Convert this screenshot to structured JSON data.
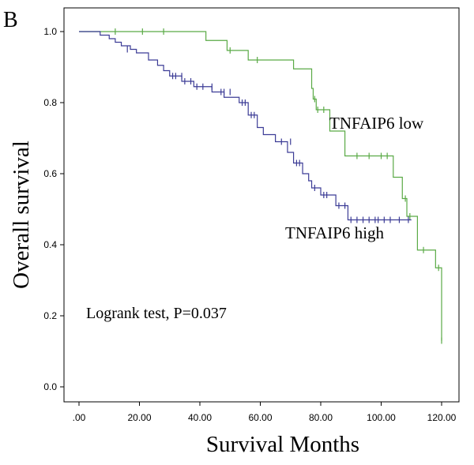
{
  "panel_label": "B",
  "chart_data": {
    "type": "line",
    "subtype": "kaplan-meier",
    "title": "",
    "xlabel": "Survival Months",
    "ylabel": "Overall survival",
    "xlim": [
      0,
      120
    ],
    "ylim": [
      0,
      1.0
    ],
    "x_ticks": [
      0,
      20,
      40,
      60,
      80,
      100,
      120
    ],
    "x_tick_labels": [
      ".00",
      "20.00",
      "40.00",
      "60.00",
      "80.00",
      "100.00",
      "120.00"
    ],
    "y_ticks": [
      0,
      0.2,
      0.4,
      0.6,
      0.8,
      1.0
    ],
    "y_tick_labels": [
      "0.0",
      "0.2",
      "0.4",
      "0.6",
      "0.8",
      "1.0"
    ],
    "grid": false,
    "annotation": "Logrank test, P=0.037",
    "series": [
      {
        "name": "TNFAIP6 low",
        "color": "#5aaa46",
        "steps": [
          [
            0,
            1.0
          ],
          [
            42,
            0.975
          ],
          [
            49,
            0.947
          ],
          [
            56,
            0.92
          ],
          [
            71,
            0.895
          ],
          [
            77,
            0.84
          ],
          [
            77.5,
            0.81
          ],
          [
            78.5,
            0.78
          ],
          [
            83,
            0.72
          ],
          [
            88,
            0.65
          ],
          [
            104,
            0.59
          ],
          [
            107,
            0.53
          ],
          [
            108.5,
            0.48
          ],
          [
            112,
            0.385
          ],
          [
            118,
            0.335
          ],
          [
            120,
            0.13
          ]
        ],
        "censored": [
          [
            12,
            1.0
          ],
          [
            21,
            1.0
          ],
          [
            28,
            1.0
          ],
          [
            50,
            0.947
          ],
          [
            59,
            0.92
          ],
          [
            78,
            0.81
          ],
          [
            79,
            0.78
          ],
          [
            81,
            0.78
          ],
          [
            92,
            0.65
          ],
          [
            96,
            0.65
          ],
          [
            100,
            0.65
          ],
          [
            102,
            0.65
          ],
          [
            108,
            0.53
          ],
          [
            109.5,
            0.48
          ],
          [
            114,
            0.385
          ],
          [
            119,
            0.335
          ],
          [
            120,
            0.13
          ]
        ]
      },
      {
        "name": "TNFAIP6 high",
        "color": "#3c3c96",
        "steps": [
          [
            0,
            1.0
          ],
          [
            7,
            0.99
          ],
          [
            10,
            0.98
          ],
          [
            12,
            0.97
          ],
          [
            14,
            0.96
          ],
          [
            17,
            0.95
          ],
          [
            19,
            0.94
          ],
          [
            23,
            0.92
          ],
          [
            26,
            0.905
          ],
          [
            28,
            0.89
          ],
          [
            30,
            0.875
          ],
          [
            34,
            0.86
          ],
          [
            38,
            0.845
          ],
          [
            44,
            0.83
          ],
          [
            48,
            0.815
          ],
          [
            53,
            0.8
          ],
          [
            56,
            0.765
          ],
          [
            59,
            0.73
          ],
          [
            61,
            0.71
          ],
          [
            65,
            0.69
          ],
          [
            69,
            0.66
          ],
          [
            71,
            0.63
          ],
          [
            74,
            0.6
          ],
          [
            76,
            0.58
          ],
          [
            77,
            0.56
          ],
          [
            80,
            0.54
          ],
          [
            85,
            0.51
          ],
          [
            89,
            0.47
          ],
          [
            110,
            0.47
          ]
        ],
        "censored": [
          [
            16,
            0.95
          ],
          [
            31,
            0.875
          ],
          [
            32,
            0.875
          ],
          [
            34,
            0.875
          ],
          [
            35,
            0.86
          ],
          [
            37,
            0.86
          ],
          [
            39,
            0.845
          ],
          [
            41,
            0.845
          ],
          [
            44,
            0.845
          ],
          [
            47,
            0.83
          ],
          [
            48,
            0.83
          ],
          [
            50,
            0.83
          ],
          [
            54,
            0.8
          ],
          [
            55,
            0.8
          ],
          [
            57,
            0.765
          ],
          [
            58,
            0.765
          ],
          [
            67,
            0.69
          ],
          [
            70,
            0.69
          ],
          [
            72,
            0.63
          ],
          [
            73,
            0.63
          ],
          [
            78,
            0.56
          ],
          [
            81,
            0.54
          ],
          [
            82,
            0.54
          ],
          [
            86,
            0.51
          ],
          [
            88,
            0.51
          ],
          [
            90,
            0.47
          ],
          [
            92,
            0.47
          ],
          [
            94,
            0.47
          ],
          [
            96,
            0.47
          ],
          [
            98,
            0.47
          ],
          [
            99,
            0.47
          ],
          [
            101,
            0.47
          ],
          [
            103,
            0.47
          ],
          [
            106,
            0.47
          ],
          [
            109,
            0.47
          ]
        ]
      }
    ]
  }
}
